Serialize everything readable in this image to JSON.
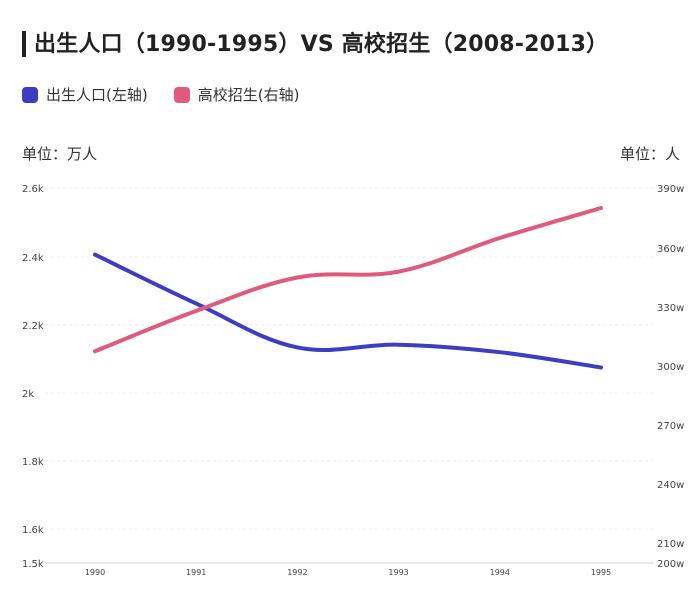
{
  "title": "出生人口（1990-1995）VS 高校招生（2008-2013）",
  "legend": [
    {
      "label": "出生人口(左轴)",
      "color": "#3d3dc3"
    },
    {
      "label": "高校招生(右轴)",
      "color": "#e05a7c"
    }
  ],
  "units": {
    "left": "单位：万人",
    "right": "单位：人"
  },
  "chart_data": {
    "type": "line",
    "x": [
      "1990",
      "1991",
      "1992",
      "1993",
      "1994",
      "1995"
    ],
    "left_axis": {
      "ticks": [
        {
          "value": 1500,
          "label": "1.5k"
        },
        {
          "value": 1600,
          "label": "1.6k"
        },
        {
          "value": 1800,
          "label": "1.8k"
        },
        {
          "value": 2000,
          "label": "2k"
        },
        {
          "value": 2200,
          "label": "2.2k"
        },
        {
          "value": 2400,
          "label": "2.4k"
        },
        {
          "value": 2600,
          "label": "2.6k"
        }
      ]
    },
    "right_axis": {
      "ticks": [
        {
          "value": 2000000,
          "label": "200w"
        },
        {
          "value": 2100000,
          "label": "210w"
        },
        {
          "value": 2400000,
          "label": "240w"
        },
        {
          "value": 2700000,
          "label": "270w"
        },
        {
          "value": 3000000,
          "label": "300w"
        },
        {
          "value": 3300000,
          "label": "330w"
        },
        {
          "value": 3600000,
          "label": "360w"
        },
        {
          "value": 3900000,
          "label": "390w"
        }
      ]
    },
    "series": [
      {
        "name": "出生人口(左轴)",
        "axis": "left",
        "color": "#3d3dc3",
        "values": [
          2407,
          2263,
          2134,
          2142,
          2120,
          2075
        ]
      },
      {
        "name": "高校招生(右轴)",
        "axis": "right",
        "color": "#e05a7c",
        "values": [
          3075000,
          3280000,
          3450000,
          3480000,
          3650000,
          3800000
        ]
      }
    ],
    "grid": true
  }
}
